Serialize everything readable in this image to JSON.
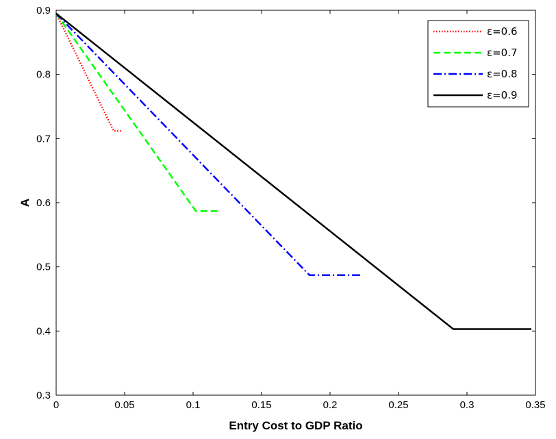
{
  "chart_data": {
    "type": "line",
    "xlabel": "Entry Cost to GDP Ratio",
    "ylabel": "A",
    "xlim": [
      0,
      0.35
    ],
    "ylim": [
      0.3,
      0.9
    ],
    "xticks": [
      0,
      0.05,
      0.1,
      0.15,
      0.2,
      0.25,
      0.3,
      0.35
    ],
    "xtick_labels": [
      "0",
      "0.05",
      "0.1",
      "0.15",
      "0.2",
      "0.25",
      "0.3",
      "0.35"
    ],
    "yticks": [
      0.3,
      0.4,
      0.5,
      0.6,
      0.7,
      0.8,
      0.9
    ],
    "ytick_labels": [
      "0.3",
      "0.4",
      "0.5",
      "0.6",
      "0.7",
      "0.8",
      "0.9"
    ],
    "grid": false,
    "legend_position": "top-right",
    "series": [
      {
        "name": "ε=0.6",
        "color": "#ff0000",
        "style": "dotted",
        "x": [
          0,
          0.042,
          0.048
        ],
        "y": [
          0.895,
          0.712,
          0.712
        ]
      },
      {
        "name": "ε=0.7",
        "color": "#00ff00",
        "style": "dashed",
        "x": [
          0,
          0.102,
          0.12
        ],
        "y": [
          0.895,
          0.587,
          0.587
        ]
      },
      {
        "name": "ε=0.8",
        "color": "#0000ff",
        "style": "dashdot",
        "x": [
          0,
          0.185,
          0.222
        ],
        "y": [
          0.895,
          0.487,
          0.487
        ]
      },
      {
        "name": "ε=0.9",
        "color": "#000000",
        "style": "solid",
        "x": [
          0,
          0.29,
          0.347
        ],
        "y": [
          0.895,
          0.403,
          0.403
        ]
      }
    ]
  }
}
